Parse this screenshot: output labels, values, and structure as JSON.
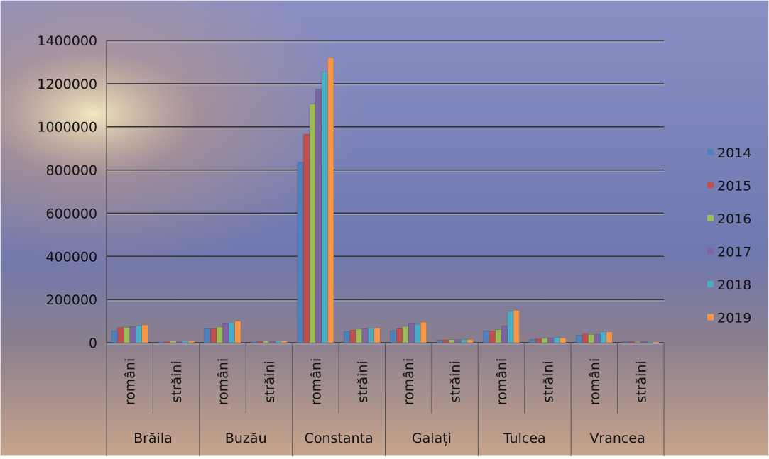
{
  "chart_data": {
    "type": "bar",
    "categories": [
      "români",
      "străini",
      "români",
      "străini",
      "români",
      "străini",
      "români",
      "străini",
      "români",
      "străini",
      "români",
      "străini"
    ],
    "groups": [
      "Brăila",
      "Buzău",
      "Constanta",
      "Galați",
      "Tulcea",
      "Vrancea"
    ],
    "series": [
      {
        "name": "2014",
        "color": "#4f81bd",
        "values": [
          55000,
          8000,
          65000,
          7000,
          835000,
          52000,
          55000,
          12000,
          55000,
          15000,
          35000,
          5000
        ]
      },
      {
        "name": "2015",
        "color": "#c0504d",
        "values": [
          70000,
          8000,
          65000,
          7000,
          965000,
          58000,
          65000,
          13000,
          55000,
          17000,
          40000,
          5000
        ]
      },
      {
        "name": "2016",
        "color": "#9bbb59",
        "values": [
          70000,
          8000,
          72000,
          8000,
          1105000,
          62000,
          75000,
          14000,
          60000,
          20000,
          38000,
          5000
        ]
      },
      {
        "name": "2017",
        "color": "#8064a2",
        "values": [
          75000,
          8000,
          88000,
          8000,
          1175000,
          65000,
          88000,
          14000,
          78000,
          22000,
          38000,
          5000
        ]
      },
      {
        "name": "2018",
        "color": "#4bacc6",
        "values": [
          78000,
          9000,
          92000,
          9000,
          1255000,
          68000,
          85000,
          14000,
          145000,
          24000,
          50000,
          5000
        ]
      },
      {
        "name": "2019",
        "color": "#f79646",
        "values": [
          82000,
          9000,
          100000,
          9000,
          1320000,
          68000,
          95000,
          15000,
          150000,
          22000,
          50000,
          5000
        ]
      }
    ],
    "ylim": [
      0,
      1400000
    ],
    "yticks": [
      0,
      200000,
      400000,
      600000,
      800000,
      1000000,
      1200000,
      1400000
    ],
    "grid": true
  }
}
